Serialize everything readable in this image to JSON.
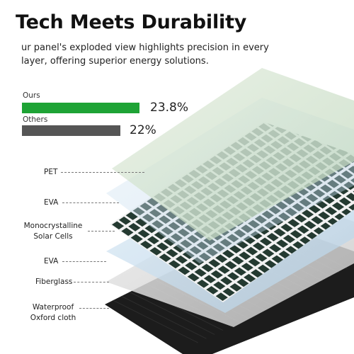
{
  "headline": "Tech Meets Durability",
  "intro": "ur panel's exploded view highlights precision in every layer, offering superior energy solutions.",
  "comparison": [
    {
      "name": "Ours",
      "value_text": "23.8%",
      "fraction": 0.976,
      "color": "#1ea335"
    },
    {
      "name": "Others",
      "value_text": "22%",
      "fraction": 0.82,
      "color": "#555555"
    }
  ],
  "layers": [
    {
      "label": "PET"
    },
    {
      "label": "EVA"
    },
    {
      "label": "Monocrystalline Solar Cells"
    },
    {
      "label": "EVA"
    },
    {
      "label": "Fiberglass"
    },
    {
      "label": "Waterproof Oxford cloth"
    }
  ],
  "colors": {
    "pet_sheet": "#cfe2cc",
    "eva_sheet": "#c8def0",
    "cell": "#243a31",
    "backsheet": "#1c1c1c"
  }
}
